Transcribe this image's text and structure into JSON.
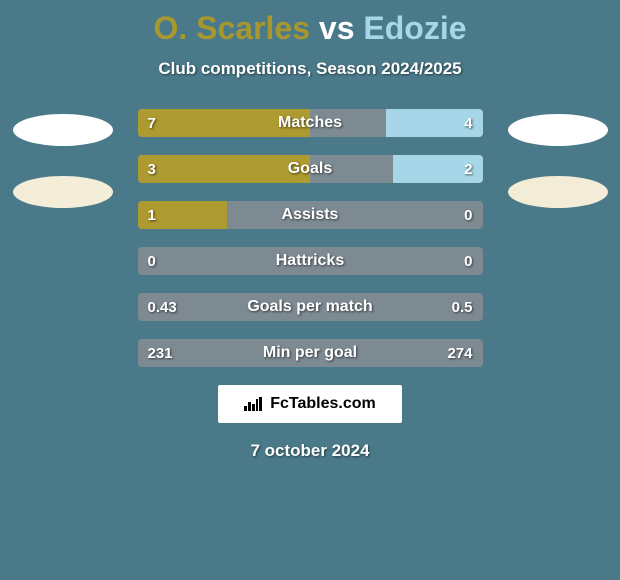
{
  "title": {
    "player1": "O. Scarles",
    "vs": " vs ",
    "player2": "Edozie",
    "color_player1": "#a8972f",
    "color_vs": "#ffffff",
    "color_player2": "#a6d6e8"
  },
  "subtitle": "Club competitions, Season 2024/2025",
  "colors": {
    "background": "#4a7a8a",
    "bar_neutral": "#7d8a92",
    "bar_left": "#ad9a30",
    "bar_right": "#a6d6e8",
    "text_white": "#ffffff"
  },
  "stats": [
    {
      "label": "Matches",
      "left_val": "7",
      "right_val": "4",
      "left_pct": 50,
      "right_pct": 50,
      "left_fill_pct": 50,
      "right_fill_pct": 28
    },
    {
      "label": "Goals",
      "left_val": "3",
      "right_val": "2",
      "left_pct": 50,
      "right_pct": 50,
      "left_fill_pct": 50,
      "right_fill_pct": 26
    },
    {
      "label": "Assists",
      "left_val": "1",
      "right_val": "0",
      "left_pct": 50,
      "right_pct": 50,
      "left_fill_pct": 26,
      "right_fill_pct": 0
    },
    {
      "label": "Hattricks",
      "left_val": "0",
      "right_val": "0",
      "left_pct": 50,
      "right_pct": 50,
      "left_fill_pct": 0,
      "right_fill_pct": 0
    },
    {
      "label": "Goals per match",
      "left_val": "0.43",
      "right_val": "0.5",
      "left_pct": 50,
      "right_pct": 50,
      "left_fill_pct": 0,
      "right_fill_pct": 0
    },
    {
      "label": "Min per goal",
      "left_val": "231",
      "right_val": "274",
      "left_pct": 50,
      "right_pct": 50,
      "left_fill_pct": 0,
      "right_fill_pct": 0
    }
  ],
  "brand": "FcTables.com",
  "date": "7 october 2024"
}
